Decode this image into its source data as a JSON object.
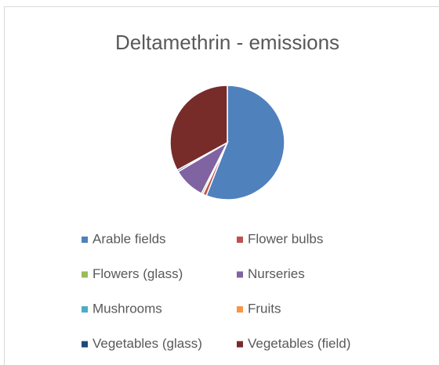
{
  "chart_data": {
    "type": "pie",
    "title": "Deltamethrin - emissions",
    "categories": [
      "Arable fields",
      "Flower bulbs",
      "Flowers (glass)",
      "Nurseries",
      "Mushrooms",
      "Fruits",
      "Vegetables (glass)",
      "Vegetables (field)"
    ],
    "values": [
      56,
      1,
      0.5,
      9,
      0,
      0,
      0.5,
      33
    ],
    "colors": [
      "#4f81bd",
      "#c0504d",
      "#9bbb59",
      "#8064a2",
      "#4bacc6",
      "#f79646",
      "#1f497d",
      "#772c2a"
    ],
    "legend": "bottom"
  }
}
